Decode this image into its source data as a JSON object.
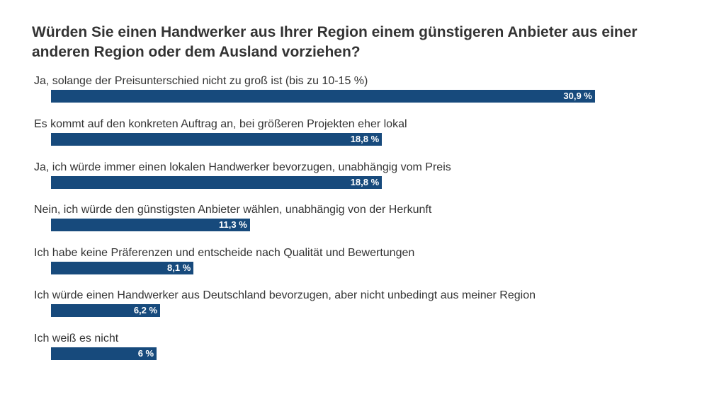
{
  "chart_data": {
    "type": "bar",
    "orientation": "horizontal",
    "title": "Würden Sie einen Handwerker aus Ihrer Region einem günstigeren Anbieter aus einer anderen Region oder dem Ausland vorziehen?",
    "categories": [
      "Ja, solange der Preisunterschied nicht zu groß ist (bis zu 10-15 %)",
      "Es kommt auf den konkreten Auftrag an, bei größeren Projekten eher lokal",
      "Ja, ich würde immer einen lokalen Handwerker bevorzugen, unabhängig vom Preis",
      "Nein, ich würde den günstigsten Anbieter wählen, unabhängig von der Herkunft",
      "Ich habe keine Präferenzen und entscheide nach Qualität und Bewertungen",
      "Ich würde einen Handwerker aus Deutschland bevorzugen, aber nicht unbedingt aus meiner Region",
      "Ich weiß es nicht"
    ],
    "values": [
      30.9,
      18.8,
      18.8,
      11.3,
      8.1,
      6.2,
      6
    ],
    "data_labels": [
      "30,9 %",
      "18,8 %",
      "18,8 %",
      "11,3 %",
      "8,1 %",
      "6,2 %",
      "6 %"
    ],
    "unit": "%",
    "grid": false,
    "bar_color": "#174a7c"
  }
}
